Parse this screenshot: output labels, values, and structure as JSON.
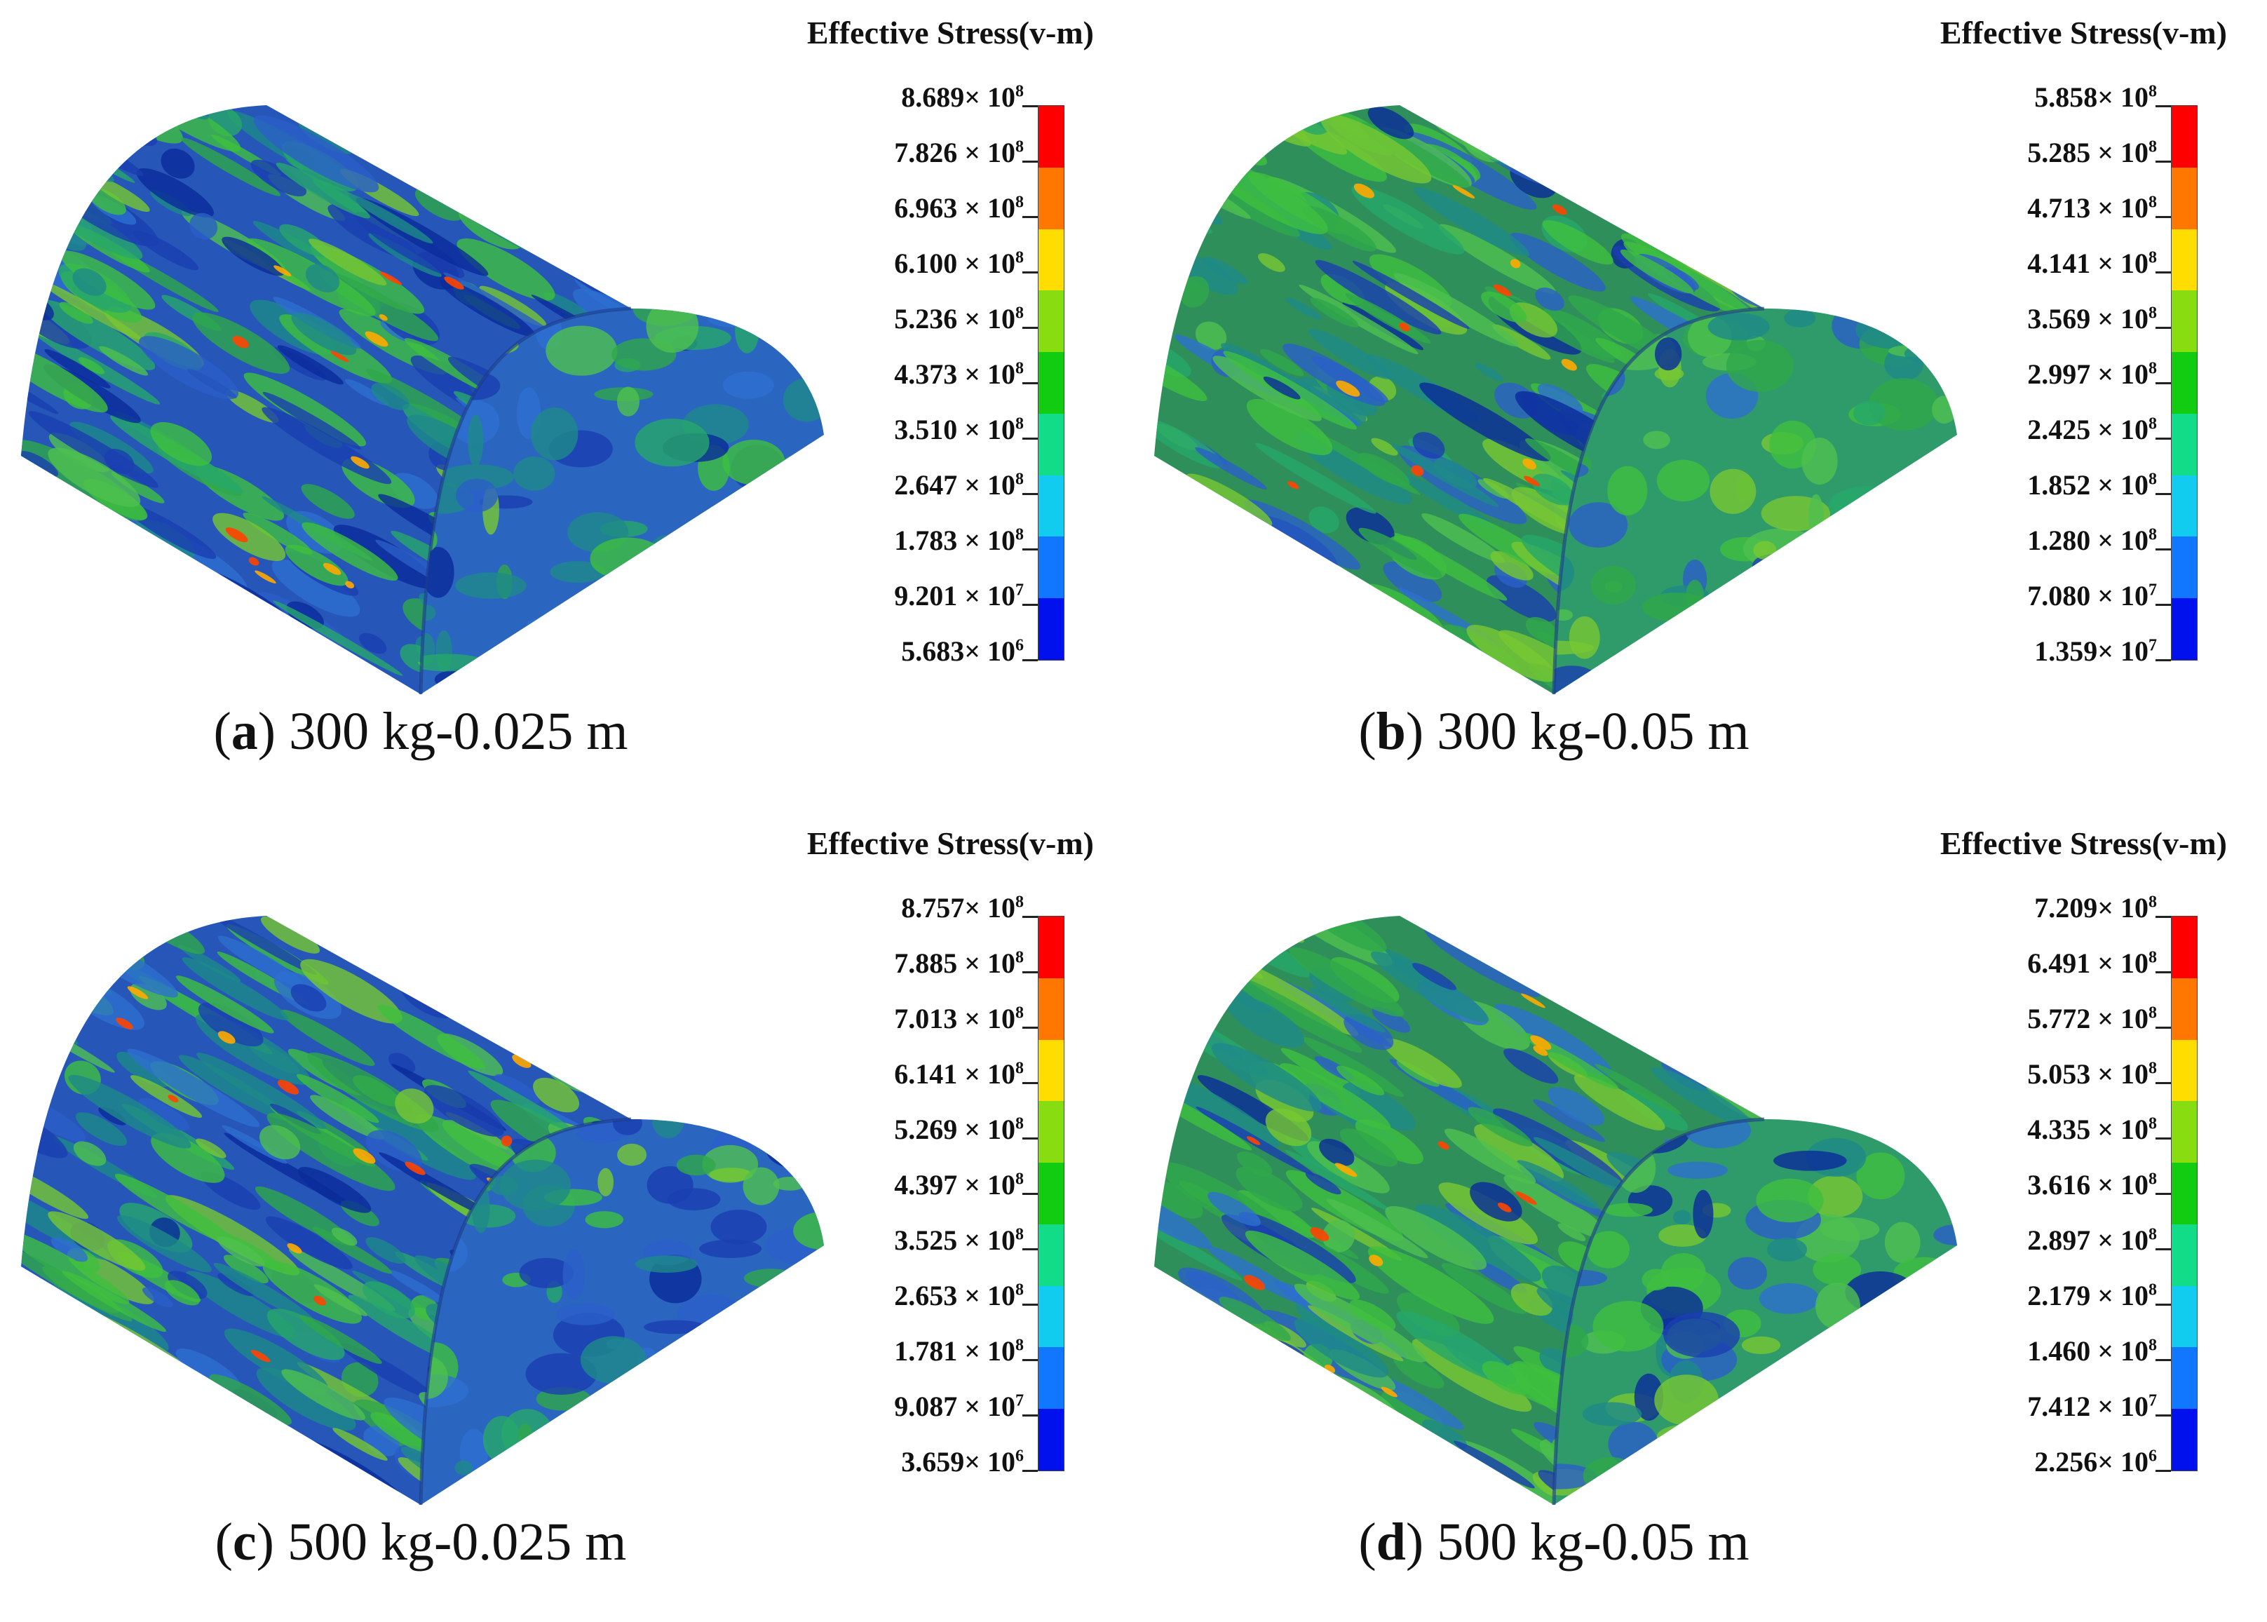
{
  "legend_title": "Effective Stress(v-m)",
  "colorbar_colors": [
    "#ff0000",
    "#ff7700",
    "#ffdd00",
    "#88dd11",
    "#11cc11",
    "#11dd88",
    "#11ccee",
    "#1177ff",
    "#0011ee"
  ],
  "panels": [
    {
      "caption_letter": "a",
      "caption_text": "300 kg-0.025 m",
      "ticks": [
        {
          "mantissa": "8.689×",
          "base": "10",
          "exp": "8"
        },
        {
          "mantissa": "7.826 ×",
          "base": "10",
          "exp": "8"
        },
        {
          "mantissa": "6.963 ×",
          "base": "10",
          "exp": "8"
        },
        {
          "mantissa": "6.100 ×",
          "base": "10",
          "exp": "8"
        },
        {
          "mantissa": "5.236 ×",
          "base": "10",
          "exp": "8"
        },
        {
          "mantissa": "4.373 ×",
          "base": "10",
          "exp": "8"
        },
        {
          "mantissa": "3.510 ×",
          "base": "10",
          "exp": "8"
        },
        {
          "mantissa": "2.647 ×",
          "base": "10",
          "exp": "8"
        },
        {
          "mantissa": "1.783 ×",
          "base": "10",
          "exp": "8"
        },
        {
          "mantissa": "9.201 ×",
          "base": "10",
          "exp": "7"
        },
        {
          "mantissa": "5.683×",
          "base": "10",
          "exp": "6"
        }
      ],
      "green_level": 0.35
    },
    {
      "caption_letter": "b",
      "caption_text": "300 kg-0.05 m",
      "ticks": [
        {
          "mantissa": "5.858×",
          "base": "10",
          "exp": "8"
        },
        {
          "mantissa": "5.285 ×",
          "base": "10",
          "exp": "8"
        },
        {
          "mantissa": "4.713 ×",
          "base": "10",
          "exp": "8"
        },
        {
          "mantissa": "4.141 ×",
          "base": "10",
          "exp": "8"
        },
        {
          "mantissa": "3.569 ×",
          "base": "10",
          "exp": "8"
        },
        {
          "mantissa": "2.997 ×",
          "base": "10",
          "exp": "8"
        },
        {
          "mantissa": "2.425 ×",
          "base": "10",
          "exp": "8"
        },
        {
          "mantissa": "1.852 ×",
          "base": "10",
          "exp": "8"
        },
        {
          "mantissa": "1.280 ×",
          "base": "10",
          "exp": "8"
        },
        {
          "mantissa": "7.080 ×",
          "base": "10",
          "exp": "7"
        },
        {
          "mantissa": "1.359×",
          "base": "10",
          "exp": "7"
        }
      ],
      "green_level": 0.7
    },
    {
      "caption_letter": "c",
      "caption_text": "500 kg-0.025 m",
      "ticks": [
        {
          "mantissa": "8.757×",
          "base": "10",
          "exp": "8"
        },
        {
          "mantissa": "7.885 ×",
          "base": "10",
          "exp": "8"
        },
        {
          "mantissa": "7.013 ×",
          "base": "10",
          "exp": "8"
        },
        {
          "mantissa": "6.141 ×",
          "base": "10",
          "exp": "8"
        },
        {
          "mantissa": "5.269 ×",
          "base": "10",
          "exp": "8"
        },
        {
          "mantissa": "4.397 ×",
          "base": "10",
          "exp": "8"
        },
        {
          "mantissa": "3.525 ×",
          "base": "10",
          "exp": "8"
        },
        {
          "mantissa": "2.653 ×",
          "base": "10",
          "exp": "8"
        },
        {
          "mantissa": "1.781 ×",
          "base": "10",
          "exp": "8"
        },
        {
          "mantissa": "9.087 ×",
          "base": "10",
          "exp": "7"
        },
        {
          "mantissa": "3.659×",
          "base": "10",
          "exp": "6"
        }
      ],
      "green_level": 0.5
    },
    {
      "caption_letter": "d",
      "caption_text": "500 kg-0.05 m",
      "ticks": [
        {
          "mantissa": "7.209×",
          "base": "10",
          "exp": "8"
        },
        {
          "mantissa": "6.491 ×",
          "base": "10",
          "exp": "8"
        },
        {
          "mantissa": "5.772 ×",
          "base": "10",
          "exp": "8"
        },
        {
          "mantissa": "5.053 ×",
          "base": "10",
          "exp": "8"
        },
        {
          "mantissa": "4.335 ×",
          "base": "10",
          "exp": "8"
        },
        {
          "mantissa": "3.616 ×",
          "base": "10",
          "exp": "8"
        },
        {
          "mantissa": "2.897 ×",
          "base": "10",
          "exp": "8"
        },
        {
          "mantissa": "2.179 ×",
          "base": "10",
          "exp": "8"
        },
        {
          "mantissa": "1.460 ×",
          "base": "10",
          "exp": "8"
        },
        {
          "mantissa": "7.412 ×",
          "base": "10",
          "exp": "7"
        },
        {
          "mantissa": "2.256×",
          "base": "10",
          "exp": "6"
        }
      ],
      "green_level": 0.65
    }
  ]
}
